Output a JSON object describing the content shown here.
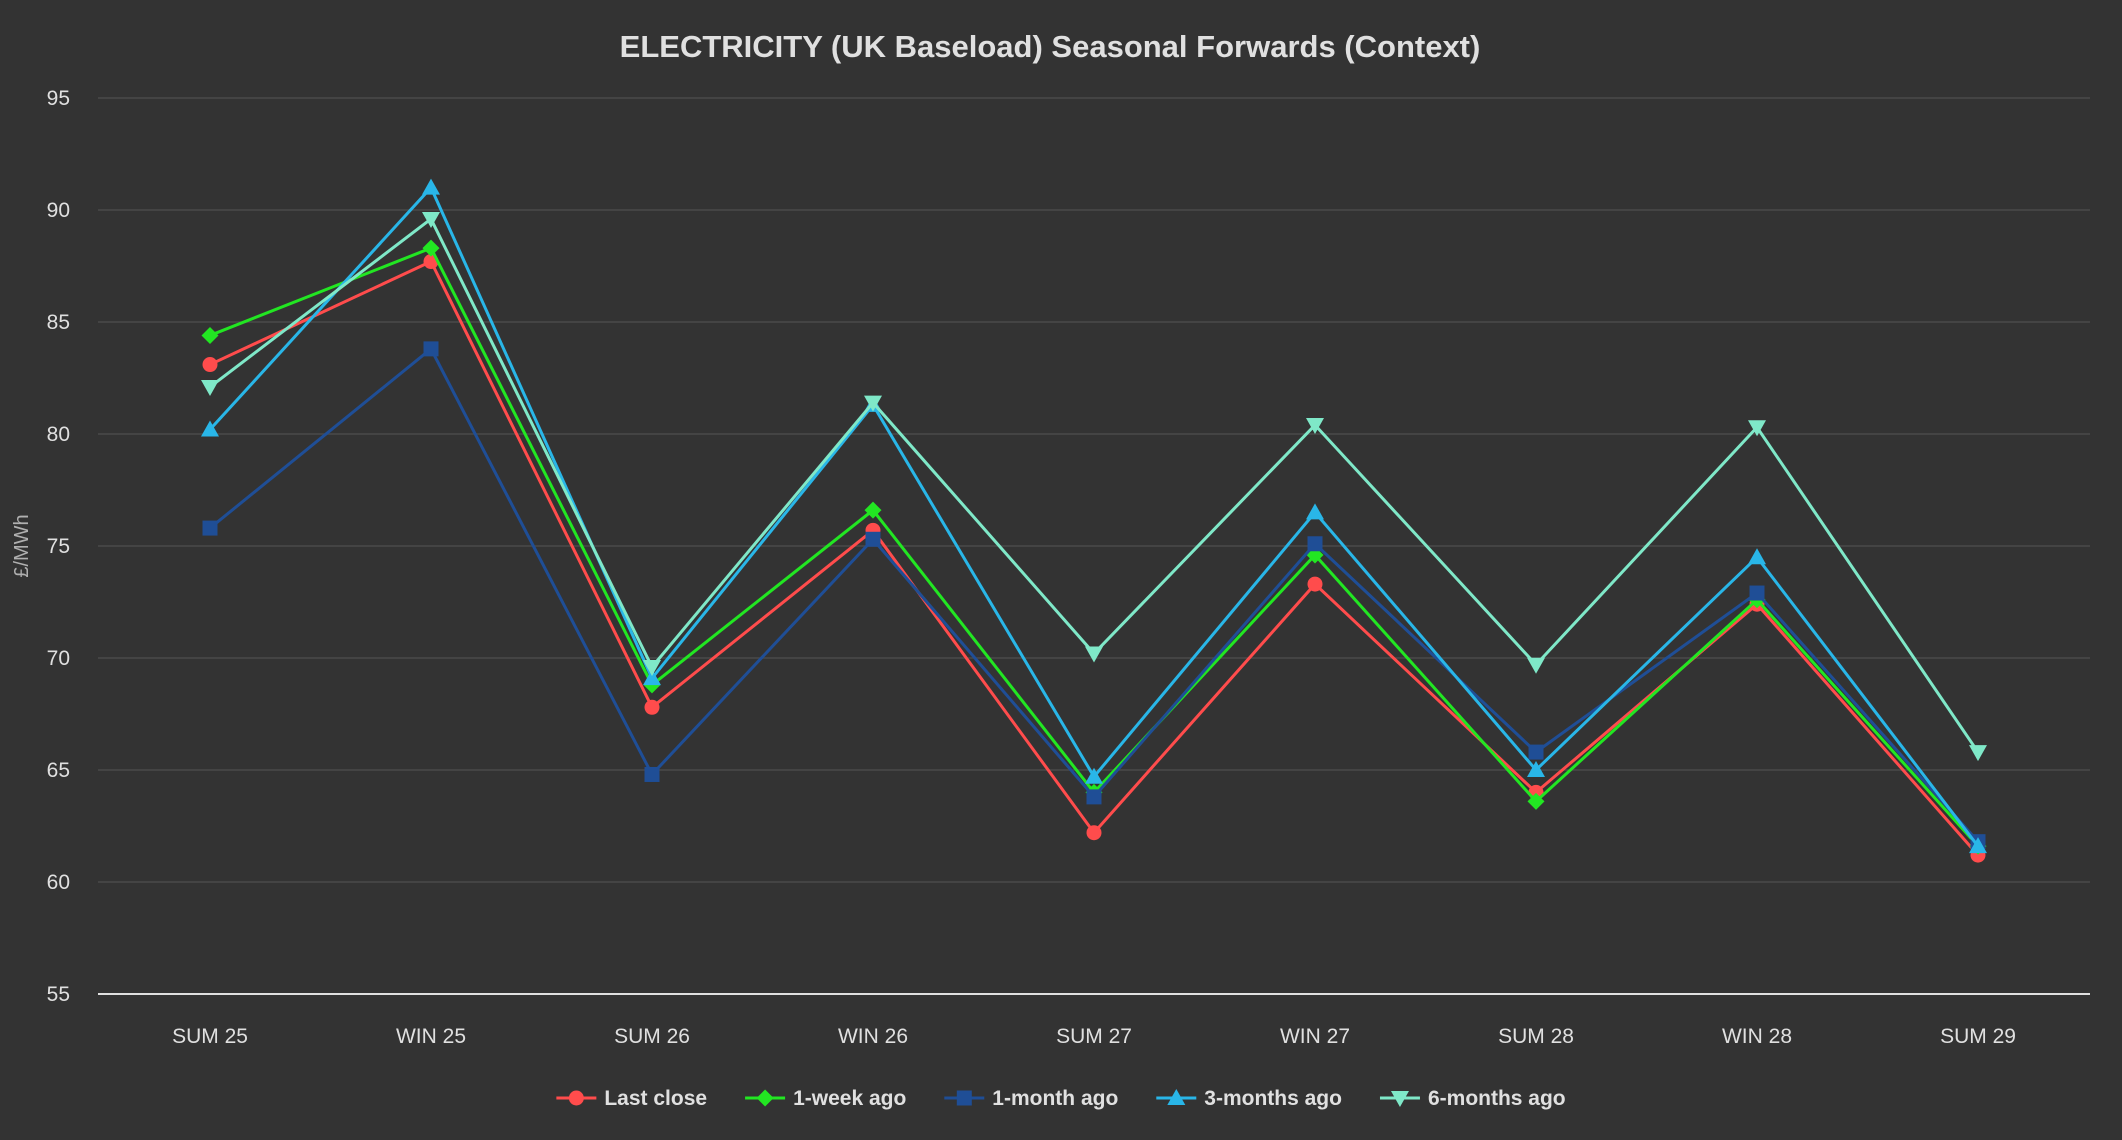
{
  "chart_data": {
    "type": "line",
    "title": "ELECTRICITY (UK Baseload) Seasonal Forwards (Context)",
    "xlabel": "",
    "ylabel": "£/MWh",
    "ylim": [
      55,
      95
    ],
    "yticks": [
      55,
      60,
      65,
      70,
      75,
      80,
      85,
      90,
      95
    ],
    "grid": true,
    "legend_position": "bottom-center",
    "categories": [
      "SUM 25",
      "WIN 25",
      "SUM 26",
      "WIN 26",
      "SUM 27",
      "WIN 27",
      "SUM 28",
      "WIN 28",
      "SUM 29"
    ],
    "series": [
      {
        "name": "Last close",
        "color": "#ff4c4c",
        "marker": "circle",
        "values": [
          83.1,
          87.7,
          67.8,
          75.7,
          62.2,
          73.3,
          64.0,
          72.4,
          61.2
        ]
      },
      {
        "name": "1-week ago",
        "color": "#22e622",
        "marker": "diamond",
        "values": [
          84.4,
          88.3,
          68.8,
          76.6,
          64.0,
          74.6,
          63.6,
          72.6,
          61.6
        ]
      },
      {
        "name": "1-month ago",
        "color": "#1f4e96",
        "marker": "square",
        "values": [
          75.8,
          83.8,
          64.8,
          75.3,
          63.8,
          75.1,
          65.8,
          72.9,
          61.8
        ]
      },
      {
        "name": "3-months ago",
        "color": "#29b6e8",
        "marker": "triangle-up",
        "values": [
          80.2,
          91.0,
          69.1,
          81.3,
          64.7,
          76.5,
          65.0,
          74.5,
          61.6
        ]
      },
      {
        "name": "6-months ago",
        "color": "#7fe8c8",
        "marker": "triangle-down",
        "values": [
          82.1,
          89.6,
          69.6,
          81.4,
          70.2,
          80.4,
          69.7,
          80.3,
          65.8
        ]
      }
    ]
  }
}
